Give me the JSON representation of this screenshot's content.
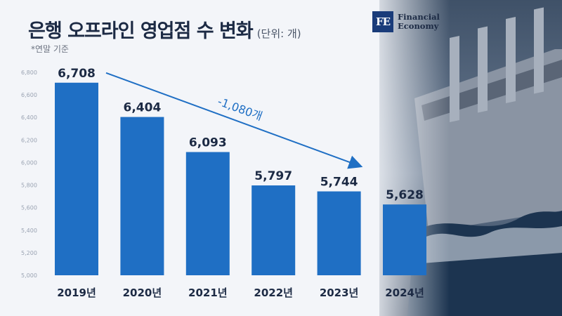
{
  "header": {
    "title": "은행 오프라인 영업점 수 변화",
    "unit": "(단위: 개)",
    "note": "*연말 기준"
  },
  "logo": {
    "mark": "FE",
    "line1": "Financial",
    "line2": "Economy"
  },
  "colors": {
    "bar": "#1f6fc4",
    "arrow": "#1f6fc4",
    "label": "#1c2a44",
    "tick": "#9aa3b2"
  },
  "chart_data": {
    "type": "bar",
    "categories": [
      "2019년",
      "2020년",
      "2021년",
      "2022년",
      "2023년",
      "2024년"
    ],
    "values": [
      6708,
      6404,
      6093,
      5797,
      5744,
      5628
    ],
    "data_labels": [
      "6,708",
      "6,404",
      "6,093",
      "5,797",
      "5,744",
      "5,628"
    ],
    "ylim": [
      5000,
      6800
    ],
    "yticks": [
      5000,
      5200,
      5400,
      5600,
      5800,
      6000,
      6200,
      6400,
      6600,
      6800
    ],
    "ytick_labels": [
      "5,000",
      "5,200",
      "5,400",
      "5,600",
      "5,800",
      "6,000",
      "6,200",
      "6,400",
      "6,600",
      "6,800"
    ],
    "annotation": "-1,080개",
    "grid": false
  }
}
